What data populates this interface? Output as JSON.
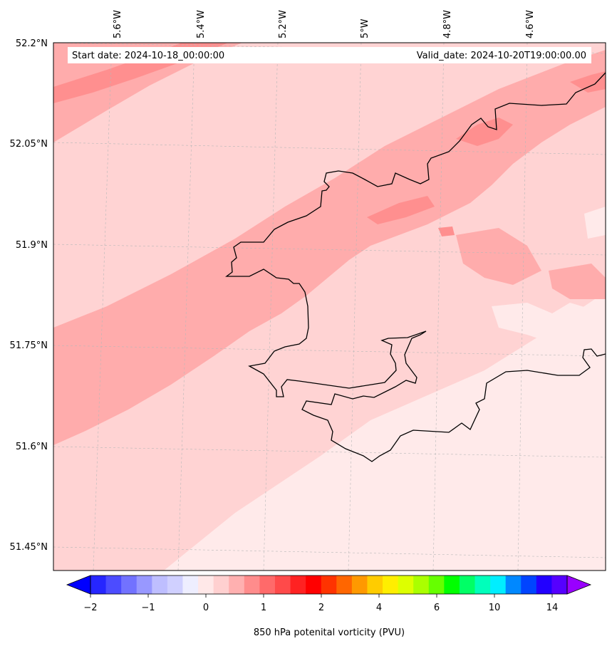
{
  "header": {
    "start_date": "Start date: 2024-10-18_00:00:00",
    "valid_date": "Valid_date: 2024-10-20T19:00:00.00"
  },
  "axes": {
    "longitude_labels": [
      "5.6°W",
      "5.4°W",
      "5.2°W",
      "5°W",
      "4.8°W",
      "4.6°W"
    ],
    "latitude_labels": [
      "52.2°N",
      "52.05°N",
      "51.9°N",
      "51.75°N",
      "51.6°N",
      "51.45°N"
    ],
    "gridlines": true
  },
  "colorbar": {
    "label": "850 hPa potenital vorticity (PVU)",
    "tick_labels": [
      "−2",
      "−1",
      "0",
      "1",
      "2",
      "4",
      "6",
      "10",
      "14"
    ],
    "colors": [
      "#0000ff",
      "#2626ff",
      "#4c4cff",
      "#7272ff",
      "#9898ff",
      "#bebeff",
      "#d0d0ff",
      "#eeeeff",
      "#ffe8e8",
      "#ffd0d0",
      "#ffb0b0",
      "#ff8c8c",
      "#ff6a6a",
      "#ff4a4a",
      "#ff2222",
      "#ff0000",
      "#ff3300",
      "#ff6600",
      "#ff9900",
      "#ffcc00",
      "#ffee00",
      "#ddff00",
      "#aaff00",
      "#66ff00",
      "#00ff00",
      "#00ff66",
      "#00ffbb",
      "#00eeff",
      "#0088ff",
      "#0044ff",
      "#2200ff",
      "#5500ff",
      "#9900ff"
    ],
    "extend": "both"
  },
  "field_colors": {
    "lightest": "#ffeaea",
    "light": "#ffd3d3",
    "medium": "#ffacac",
    "dark": "#ff8f8f"
  },
  "coastline_color": "#000000"
}
